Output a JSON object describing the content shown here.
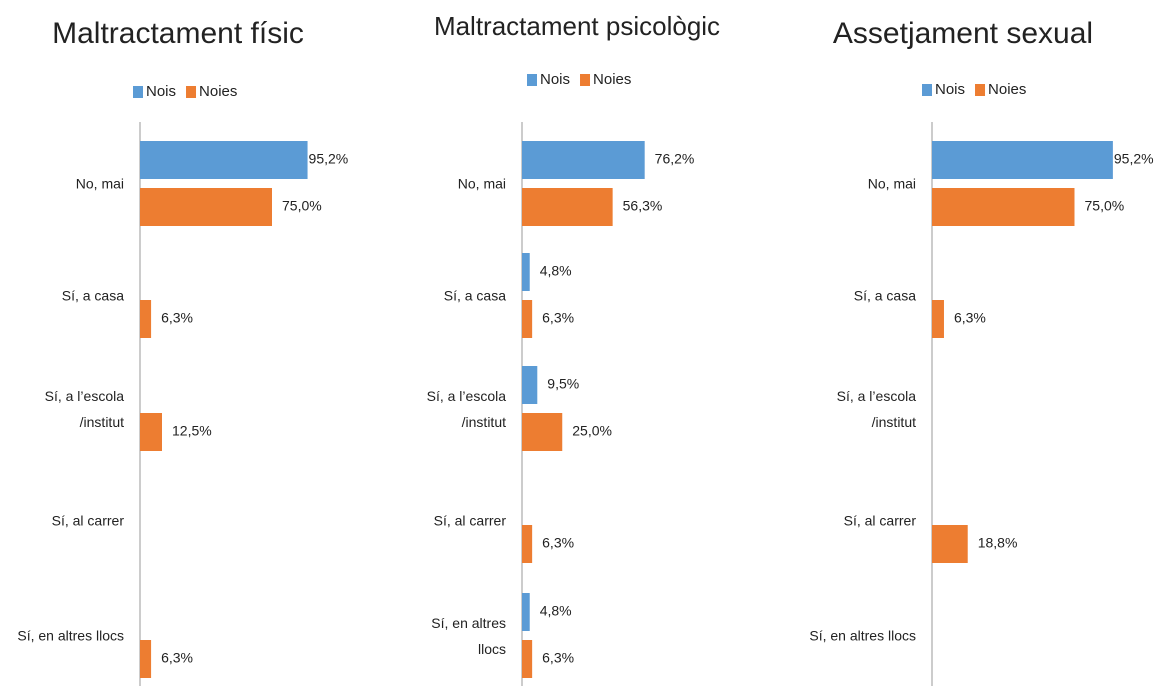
{
  "chart_data": [
    {
      "type": "hbar",
      "title": "Maltractament físic",
      "categories": [
        "No, mai",
        "Sí, a casa",
        "Sí, a l’escola\n/institut",
        "Sí, al carrer",
        "Sí, en altres llocs"
      ],
      "series": [
        {
          "name": "Nois",
          "color": "#5b9bd5",
          "values": [
            95.2,
            null,
            null,
            null,
            null
          ],
          "value_labels": [
            "95,2%",
            null,
            null,
            null,
            null
          ]
        },
        {
          "name": "Noies",
          "color": "#ed7d31",
          "values": [
            75.0,
            6.3,
            12.5,
            null,
            6.3
          ],
          "value_labels": [
            "75,0%",
            "6,3%",
            "12,5%",
            null,
            "6,3%"
          ]
        }
      ],
      "xlim": [
        0,
        100
      ]
    },
    {
      "type": "hbar",
      "title": "Maltractament psicològic",
      "categories": [
        "No, mai",
        "Sí, a casa",
        "Sí, a l’escola\n/institut",
        "Sí, al carrer",
        "Sí, en altres\nllocs"
      ],
      "series": [
        {
          "name": "Nois",
          "color": "#5b9bd5",
          "values": [
            76.2,
            4.8,
            9.5,
            null,
            4.8
          ],
          "value_labels": [
            "76,2%",
            "4,8%",
            "9,5%",
            null,
            "4,8%"
          ]
        },
        {
          "name": "Noies",
          "color": "#ed7d31",
          "values": [
            56.3,
            6.3,
            25.0,
            6.3,
            6.3
          ],
          "value_labels": [
            "56,3%",
            "6,3%",
            "25,0%",
            "6,3%",
            "6,3%"
          ]
        }
      ],
      "xlim": [
        0,
        100
      ]
    },
    {
      "type": "hbar",
      "title": "Assetjament sexual",
      "categories": [
        "No, mai",
        "Sí, a casa",
        "Sí, a l’escola\n/institut",
        "Sí, al carrer",
        "Sí, en altres llocs"
      ],
      "series": [
        {
          "name": "Nois",
          "color": "#5b9bd5",
          "values": [
            95.2,
            null,
            null,
            null,
            null
          ],
          "value_labels": [
            "95,2%",
            null,
            null,
            null,
            null
          ]
        },
        {
          "name": "Noies",
          "color": "#ed7d31",
          "values": [
            75.0,
            6.3,
            null,
            18.8,
            null
          ],
          "value_labels": [
            "75,0%",
            "6,3%",
            null,
            "18,8%",
            null
          ]
        }
      ],
      "xlim": [
        0,
        100
      ]
    }
  ]
}
